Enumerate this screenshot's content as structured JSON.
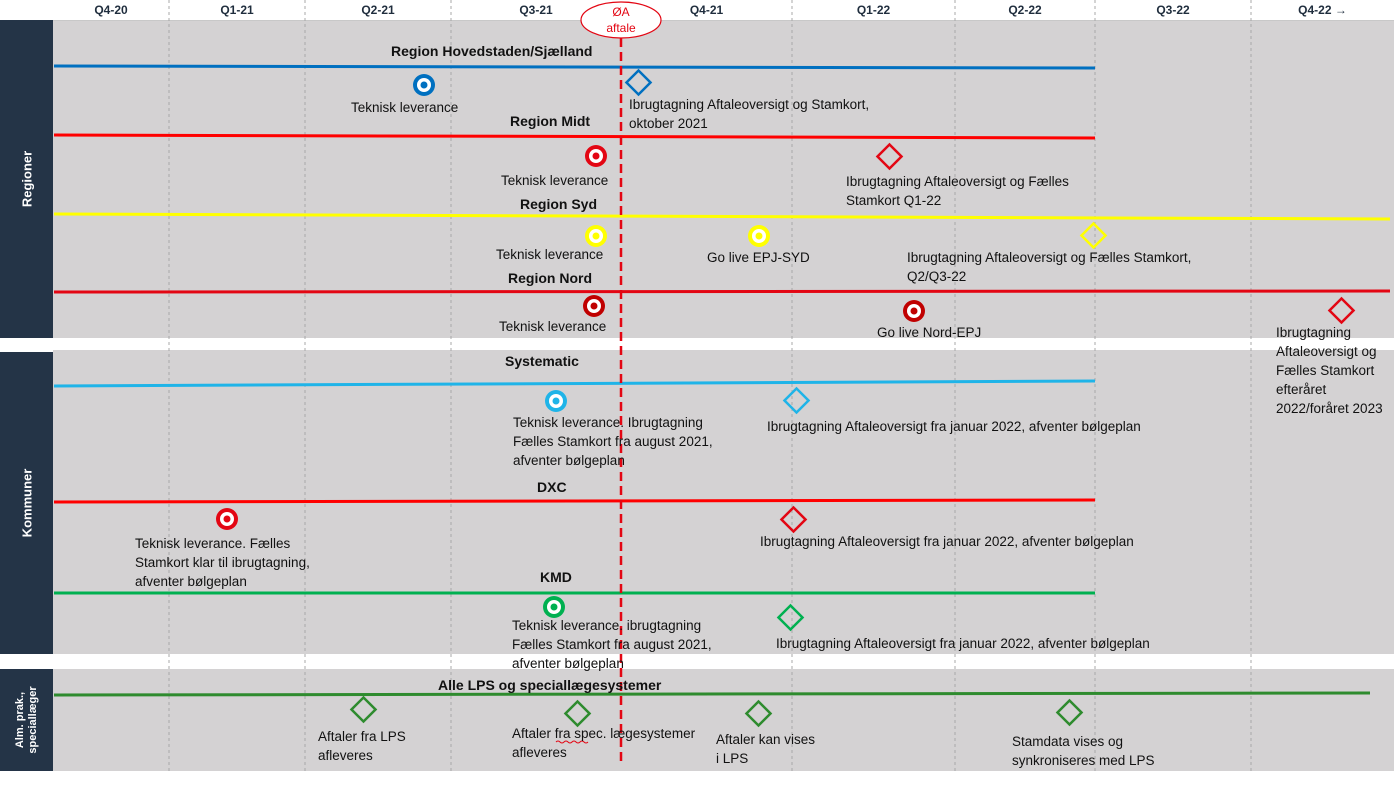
{
  "timeline": {
    "quarters": [
      "Q4-20",
      "Q1-21",
      "Q2-21",
      "Q3-21",
      "Q4-21",
      "Q1-22",
      "Q2-22",
      "Q3-22",
      "Q4-22 →"
    ],
    "milestone": {
      "line1": "ØA",
      "line2": "aftale"
    }
  },
  "sections": {
    "regioner": "Regioner",
    "kommuner": "Kommuner",
    "alm": {
      "line1": "Alm. prak.,",
      "line2": "speciallæger"
    }
  },
  "lanes": {
    "hovedstaden": {
      "title": "Region Hovedstaden/Sjælland",
      "color": "#0070c0",
      "tech": "Teknisk leverance",
      "adoption": "Ibrugtagning Aftaleoversigt og Stamkort,\noktober 2021"
    },
    "midt": {
      "title": "Region Midt",
      "color": "#ff0000",
      "tech": "Teknisk leverance",
      "adoption": "Ibrugtagning Aftaleoversigt og Fælles\nStamkort Q1-22"
    },
    "syd": {
      "title": "Region Syd",
      "color": "#ffff00",
      "tech": "Teknisk leverance",
      "golive": "Go live EPJ-SYD",
      "adoption": "Ibrugtagning Aftaleoversigt og Fælles Stamkort,\nQ2/Q3-22"
    },
    "nord": {
      "title": "Region Nord",
      "color": "#e30613",
      "tech": "Teknisk leverance",
      "golive": "Go live Nord-EPJ",
      "adoption": "Ibrugtagning\nAftaleoversigt og\nFælles Stamkort\nefteråret\n2022/foråret 2023"
    },
    "systematic": {
      "title": "Systematic",
      "color": "#1fb4e8",
      "tech": "Teknisk leverance. Ibrugtagning\nFælles Stamkort fra august 2021,\nafventer bølgeplan",
      "adoption": "Ibrugtagning Aftaleoversigt fra januar 2022, afventer bølgeplan"
    },
    "dxc": {
      "title": "DXC",
      "color": "#ff0000",
      "tech": "Teknisk leverance. Fælles\nStamkort klar til ibrugtagning,\nafventer bølgeplan",
      "adoption": "Ibrugtagning Aftaleoversigt fra januar 2022, afventer bølgeplan"
    },
    "kmd": {
      "title": "KMD",
      "color": "#00b050",
      "tech": "Teknisk leverance. ibrugtagning\nFælles Stamkort fra august 2021,\nafventer bølgeplan",
      "adoption": "Ibrugtagning Aftaleoversigt fra januar 2022, afventer bølgeplan"
    },
    "lps": {
      "title": "Alle LPS og speciallægesystemer",
      "color": "#2e8b2e",
      "m1": "Aftaler fra LPS\nafleveres",
      "m2": "Aftaler fra spec. lægesystemer\n afleveres",
      "m3": "Aftaler kan vises\ni LPS",
      "m4": "Stamdata vises og\nsynkroniseres med LPS"
    }
  }
}
